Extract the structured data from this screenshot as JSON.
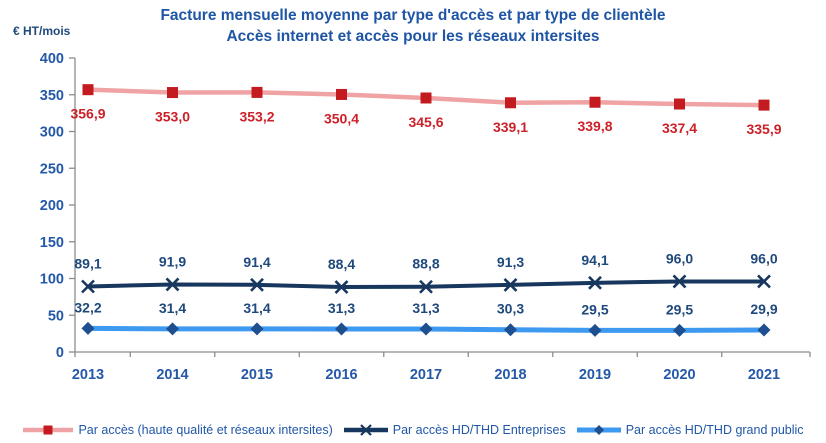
{
  "chart_data": {
    "type": "line",
    "title_line1": "Facture mensuelle moyenne par type d'accès et par type de clientèle",
    "title_line2": "Accès internet et accès pour les réseaux intersites",
    "y_axis_unit": "€ HT/mois",
    "categories": [
      "2013",
      "2014",
      "2015",
      "2016",
      "2017",
      "2018",
      "2019",
      "2020",
      "2021"
    ],
    "ylim": [
      0,
      400
    ],
    "y_tick_step": 50,
    "grid": false,
    "legend_position": "bottom",
    "decimal_separator": ",",
    "colors": {
      "title_text": "#1F55A5",
      "axis_text": "#2458A8",
      "legend_text": "#2057A8",
      "axis_line": "#8C8C8C",
      "unit_label_text": "#1F497D"
    },
    "series": [
      {
        "name": "Par accès (haute qualité et réseaux intersites)",
        "values": [
          356.9,
          353.0,
          353.2,
          350.4,
          345.6,
          339.1,
          339.8,
          337.4,
          335.9
        ],
        "marker": "square",
        "line_color": "#F0A3A4",
        "marker_color": "#C31B20",
        "label_color": "#CD2129",
        "label_position": "below"
      },
      {
        "name": "Par accès HD/THD Entreprises",
        "values": [
          89.1,
          91.9,
          91.4,
          88.4,
          88.8,
          91.3,
          94.1,
          96.0,
          96.0
        ],
        "marker": "x",
        "line_color": "#17375E",
        "marker_color": "#17375E",
        "label_color": "#1F497D",
        "label_position": "above"
      },
      {
        "name": "Par accès HD/THD grand public",
        "values": [
          32.2,
          31.4,
          31.4,
          31.3,
          31.3,
          30.3,
          29.5,
          29.5,
          29.9
        ],
        "marker": "diamond",
        "line_color": "#3E9AF0",
        "marker_color": "#1D4F91",
        "label_color": "#1F497D",
        "label_position": "above"
      }
    ]
  }
}
